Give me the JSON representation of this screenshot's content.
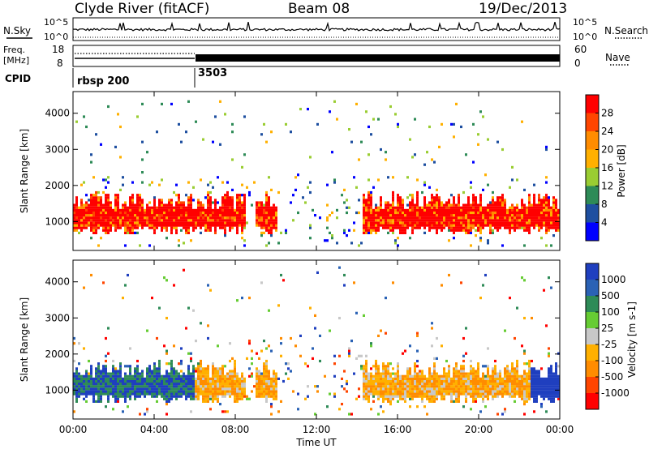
{
  "header": {
    "station": "Clyde River (fitACF)",
    "beam": "Beam 08",
    "date": "19/Dec/2013"
  },
  "summary": {
    "nsky_label": "N.Sky",
    "nsearch_label": "N.Search",
    "log_top": "10^5",
    "log_bottom": "10^0",
    "freq_label_line1": "Freq.",
    "freq_label_line2": "[MHz]",
    "freq_ticks": [
      "18",
      "8"
    ],
    "nave_ticks": [
      "60",
      "0"
    ],
    "nave_label": "Nave",
    "cpid_label": "CPID",
    "cpid_segments": [
      {
        "label": "rbsp 200",
        "start_hour": 0
      },
      {
        "label": "3503",
        "start_hour": 6
      }
    ]
  },
  "chart_data": [
    {
      "type": "heatmap",
      "name": "power",
      "ylabel": "Slant Range [km]",
      "xlabel": "Time UT",
      "x_ticks": [
        "00:00",
        "04:00",
        "08:00",
        "12:00",
        "16:00",
        "20:00",
        "00:00"
      ],
      "xlim_hours": [
        0,
        24
      ],
      "y_ticks": [
        "1000",
        "2000",
        "3000",
        "4000"
      ],
      "ylim_km": [
        200,
        4600
      ],
      "colorbar_label": "Power [dB]",
      "colorbar_ticks": [
        "28",
        "24",
        "20",
        "16",
        "12",
        "8",
        "4"
      ],
      "colorbar_colors": [
        "#ff0000",
        "#ff4500",
        "#ff8c00",
        "#ffb000",
        "#9acd32",
        "#2e8b57",
        "#1e4fa0",
        "#0000ff"
      ]
    },
    {
      "type": "heatmap",
      "name": "velocity",
      "ylabel": "Slant Range [km]",
      "xlabel": "Time UT",
      "x_ticks": [
        "00:00",
        "04:00",
        "08:00",
        "12:00",
        "16:00",
        "20:00",
        "00:00"
      ],
      "xlim_hours": [
        0,
        24
      ],
      "y_ticks": [
        "1000",
        "2000",
        "3000",
        "4000"
      ],
      "ylim_km": [
        200,
        4600
      ],
      "colorbar_label": "Velocity [m s-1]",
      "colorbar_ticks": [
        "1000",
        "500",
        "100",
        "25",
        "-25",
        "-100",
        "-500",
        "-1000"
      ],
      "colorbar_colors": [
        "#1f3fbf",
        "#2a62b5",
        "#2e8b57",
        "#66cc33",
        "#c8c8c8",
        "#ffb000",
        "#ff8c00",
        "#ff4500",
        "#ff0000"
      ]
    }
  ]
}
